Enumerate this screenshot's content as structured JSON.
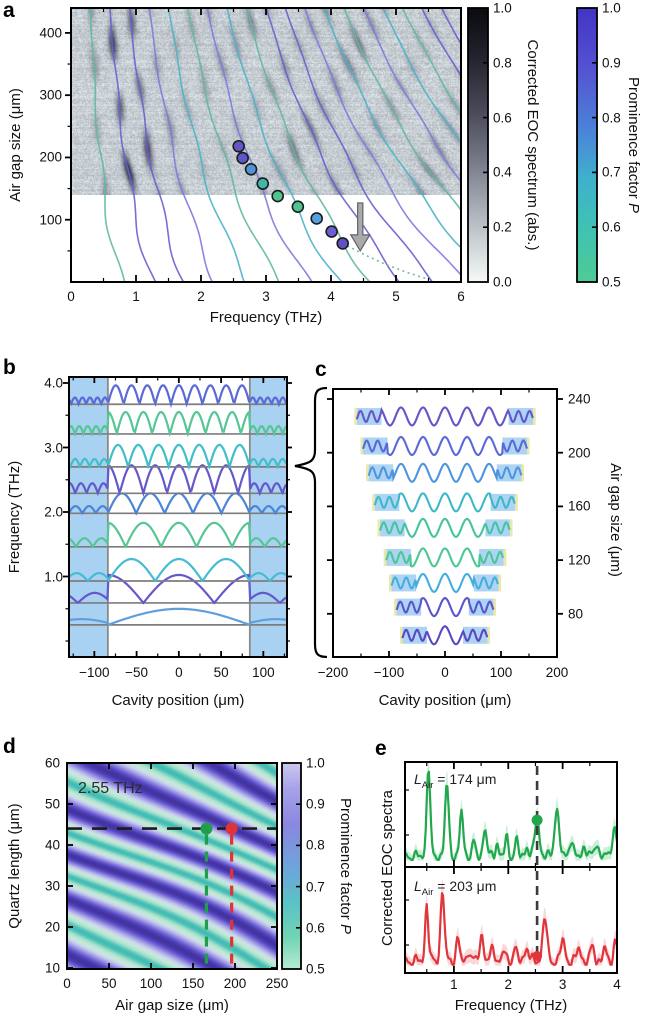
{
  "panels": {
    "a": {
      "label": "a",
      "xlabel": "Frequency (THz)",
      "ylabel": "Air gap size (μm)",
      "xticks": [
        "0",
        "1",
        "2",
        "3",
        "4",
        "5",
        "6"
      ],
      "xtick_values": [
        0,
        1,
        2,
        3,
        4,
        5,
        6
      ],
      "yticks": [
        "100",
        "200",
        "300",
        "400"
      ],
      "ytick_values": [
        100,
        200,
        300,
        400
      ],
      "xlim": [
        0,
        6
      ],
      "ylim": [
        0,
        440
      ],
      "noise_min_airgap": 140,
      "branch_count": 20,
      "branch_palette": [
        "#5fb99e",
        "#6a5ecf",
        "#6a5ecf",
        "#7d7ade",
        "#49b4c9",
        "#5fb99e",
        "#7d7ade",
        "#49b4c9"
      ],
      "dark_band_weights": {
        "1": 0.35,
        "2": 0.95,
        "3": 0.75,
        "4": 0.32,
        "5": 0.2,
        "6": 0.24,
        "7": 0.3,
        "8": 0.32,
        "9": 0.5,
        "10": 0.45,
        "11": 0.3,
        "12": 0.32,
        "13": 0.45,
        "14": 0.5,
        "15": 0.36,
        "16": 0.3,
        "17": 0.26,
        "18": 0.25,
        "19": 0.2,
        "20": 0.2
      },
      "dots": [
        {
          "f": 2.58,
          "L": 218,
          "color": "#6456c8"
        },
        {
          "f": 2.64,
          "L": 199,
          "color": "#5f55cd"
        },
        {
          "f": 2.77,
          "L": 181,
          "color": "#4f93d9"
        },
        {
          "f": 2.95,
          "L": 158,
          "color": "#3eb8ad"
        },
        {
          "f": 3.18,
          "L": 138,
          "color": "#4fc48e"
        },
        {
          "f": 3.49,
          "L": 121,
          "color": "#4fc48e"
        },
        {
          "f": 3.78,
          "L": 102,
          "color": "#55a0e0"
        },
        {
          "f": 4.01,
          "L": 81,
          "color": "#6a5fd6"
        },
        {
          "f": 4.18,
          "L": 62,
          "color": "#6050c8"
        }
      ],
      "dotted_extension": [
        [
          4.25,
          58
        ],
        [
          4.55,
          42
        ],
        [
          4.85,
          28
        ],
        [
          5.15,
          16
        ],
        [
          5.45,
          6
        ]
      ],
      "arrow": {
        "f": 4.45,
        "L_top": 127,
        "L_tip": 50,
        "fill": "#a8aaac",
        "stroke": "#606265"
      },
      "colorbar_eoc": {
        "label": "Corrected EOC spectrum (abs.)",
        "ticks": [
          "1.0",
          "0.8",
          "0.6",
          "0.4",
          "0.2",
          "0.0"
        ],
        "tick_values": [
          1.0,
          0.8,
          0.6,
          0.4,
          0.2,
          0.0
        ],
        "stops": [
          [
            0,
            "#0a0a10"
          ],
          [
            0.18,
            "#23232e"
          ],
          [
            0.38,
            "#4a4a5a"
          ],
          [
            0.55,
            "#757786"
          ],
          [
            0.72,
            "#a6aab4"
          ],
          [
            0.88,
            "#d3d9da"
          ],
          [
            1,
            "#f4f8f7"
          ]
        ]
      },
      "colorbar_p": {
        "label_text": "Prominence factor ",
        "label_italic": "P",
        "ticks": [
          "1.0",
          "0.9",
          "0.8",
          "0.7",
          "0.6",
          "0.5"
        ],
        "tick_values": [
          1.0,
          0.9,
          0.8,
          0.7,
          0.6,
          0.5
        ],
        "stops": [
          [
            0,
            "#4334c4"
          ],
          [
            0.22,
            "#5552d2"
          ],
          [
            0.45,
            "#4b84d8"
          ],
          [
            0.62,
            "#3fb0cd"
          ],
          [
            0.8,
            "#3fc2b4"
          ],
          [
            1,
            "#4ecb94"
          ]
        ]
      }
    },
    "b": {
      "label": "b",
      "xlabel": "Cavity position (μm)",
      "ylabel": "Frequency (THz)",
      "xticks": [
        "−100",
        "−50",
        "0",
        "50",
        "100"
      ],
      "xtick_values": [
        -100,
        -50,
        0,
        50,
        100
      ],
      "yticks": [
        "4.0",
        "3.0",
        "2.0",
        "1.0"
      ],
      "ytick_values": [
        4.0,
        3.0,
        2.0,
        1.0
      ],
      "wall_position_um": 84,
      "mirror_fill": "#a9d2f2",
      "baseline_color": "#7d7d7d",
      "modes": [
        {
          "n": 1,
          "f": 0.25,
          "color": "#5f9fdc",
          "amp": 16
        },
        {
          "n": 2,
          "f": 0.59,
          "color": "#6458cc",
          "amp": 28
        },
        {
          "n": 3,
          "f": 0.93,
          "color": "#44bcd4",
          "amp": 22
        },
        {
          "n": 4,
          "f": 1.46,
          "color": "#55c694",
          "amp": 24
        },
        {
          "n": 5,
          "f": 1.98,
          "color": "#4b84d8",
          "amp": 20
        },
        {
          "n": 6,
          "f": 2.29,
          "color": "#6458cc",
          "amp": 28
        },
        {
          "n": 7,
          "f": 2.7,
          "color": "#3fbfc9",
          "amp": 22
        },
        {
          "n": 8,
          "f": 3.21,
          "color": "#55c694",
          "amp": 22
        },
        {
          "n": 9,
          "f": 3.67,
          "color": "#5b6ad8",
          "amp": 19
        }
      ]
    },
    "c": {
      "label": "c",
      "xlabel": "Cavity position (μm)",
      "ylabel": "Air gap size (μm)",
      "xticks": [
        "−200",
        "−100",
        "0",
        "100",
        "200"
      ],
      "xtick_values": [
        -200,
        -100,
        0,
        100,
        200
      ],
      "yticks": [
        "240",
        "200",
        "160",
        "120",
        "80"
      ],
      "ytick_values": [
        240,
        200,
        160,
        120,
        80
      ],
      "mirror_width_um": 44,
      "mirror_fill": "#aed4f4",
      "mirror_edge": "#ece8a8",
      "rows": [
        {
          "L": 227,
          "color": "#6456c8"
        },
        {
          "L": 205,
          "color": "#5b68d8"
        },
        {
          "L": 185,
          "color": "#4f95dd"
        },
        {
          "L": 163,
          "color": "#3cb8c8"
        },
        {
          "L": 144,
          "color": "#45c4a0"
        },
        {
          "L": 122,
          "color": "#4cc795"
        },
        {
          "L": 103,
          "color": "#45aedd"
        },
        {
          "L": 85,
          "color": "#5b55cc"
        },
        {
          "L": 64,
          "color": "#5848c4"
        }
      ]
    },
    "d": {
      "label": "d",
      "xlabel": "Air gap size (μm)",
      "ylabel": "Quartz length (μm)",
      "annotation": "2.55 THz",
      "xticks": [
        "0",
        "50",
        "100",
        "150",
        "200",
        "250"
      ],
      "xtick_values": [
        0,
        50,
        100,
        150,
        200,
        250
      ],
      "yticks": [
        "60",
        "50",
        "40",
        "30",
        "20",
        "10"
      ],
      "ytick_values": [
        60,
        50,
        40,
        30,
        20,
        10
      ],
      "hline_quartz_length": 44,
      "green_air_gap": 166,
      "red_air_gap": 196,
      "green_color": "#1f9e4c",
      "red_color": "#e03338",
      "cmap_stops": [
        [
          0,
          [
            63,
            188,
            180
          ]
        ],
        [
          0.1,
          [
            165,
            224,
            204
          ]
        ],
        [
          0.28,
          [
            200,
            236,
            216
          ]
        ],
        [
          0.48,
          [
            204,
            212,
            240
          ]
        ],
        [
          0.72,
          [
            154,
            146,
            228
          ]
        ],
        [
          0.92,
          [
            88,
            74,
            200
          ]
        ],
        [
          1,
          [
            67,
            51,
            159
          ]
        ]
      ],
      "colorbar": {
        "label_text": "Prominence factor ",
        "label_italic": "P",
        "ticks": [
          "1.0",
          "0.9",
          "0.8",
          "0.7",
          "0.6",
          "0.5"
        ],
        "tick_values": [
          1.0,
          0.9,
          0.8,
          0.7,
          0.6,
          0.5
        ],
        "stops": [
          [
            0,
            "#cbc8f0"
          ],
          [
            0.12,
            "#a8a3e8"
          ],
          [
            0.3,
            "#8a87de"
          ],
          [
            0.5,
            "#6fa3dc"
          ],
          [
            0.68,
            "#5bc2c6"
          ],
          [
            0.85,
            "#72d4b4"
          ],
          [
            1,
            "#b8ecd2"
          ]
        ]
      }
    },
    "e": {
      "label": "e",
      "xlabel": "Frequency (THz)",
      "ylabel": "Corrected EOC spectra",
      "xticks": [
        "1",
        "2",
        "3",
        "4"
      ],
      "xtick_values": [
        1,
        2,
        3,
        4
      ],
      "xlim": [
        0.1,
        4.0
      ],
      "dash_f": 2.53,
      "top": {
        "var": "L",
        "sub": "Air",
        "rest": " = 174 μm",
        "color": "#22a84c",
        "band": "rgba(110,210,150,0.35)",
        "dot": {
          "f": 2.53,
          "h": 0.44
        },
        "peaks": [
          [
            0.53,
            0.98,
            0.045
          ],
          [
            0.87,
            0.75,
            0.05
          ],
          [
            1.14,
            0.48,
            0.045
          ],
          [
            1.36,
            0.15,
            0.04
          ],
          [
            1.57,
            0.32,
            0.045
          ],
          [
            1.79,
            0.15,
            0.04
          ],
          [
            1.97,
            0.2,
            0.04
          ],
          [
            2.15,
            0.17,
            0.04
          ],
          [
            2.34,
            0.12,
            0.04
          ],
          [
            2.53,
            0.44,
            0.055
          ],
          [
            2.89,
            0.5,
            0.06
          ],
          [
            3.15,
            0.18,
            0.05
          ],
          [
            3.4,
            0.12,
            0.045
          ],
          [
            3.62,
            0.15,
            0.05
          ],
          [
            3.95,
            0.3,
            0.06
          ]
        ]
      },
      "bottom": {
        "var": "L",
        "sub": "Air",
        "rest": " = 203 μm",
        "color": "#e0353a",
        "band": "rgba(240,140,150,0.35)",
        "dot": {
          "f": 2.53,
          "h": 0.1
        },
        "peaks": [
          [
            0.5,
            0.6,
            0.04
          ],
          [
            0.79,
            0.7,
            0.05
          ],
          [
            1.07,
            0.22,
            0.045
          ],
          [
            1.28,
            0.12,
            0.04
          ],
          [
            1.51,
            0.26,
            0.05
          ],
          [
            1.72,
            0.14,
            0.045
          ],
          [
            1.92,
            0.1,
            0.04
          ],
          [
            2.12,
            0.13,
            0.045
          ],
          [
            2.34,
            0.15,
            0.05
          ],
          [
            2.67,
            0.45,
            0.055
          ],
          [
            3.0,
            0.2,
            0.055
          ],
          [
            3.3,
            0.13,
            0.05
          ],
          [
            3.55,
            0.14,
            0.05
          ],
          [
            3.77,
            0.12,
            0.045
          ],
          [
            3.97,
            0.2,
            0.05
          ]
        ]
      }
    }
  }
}
